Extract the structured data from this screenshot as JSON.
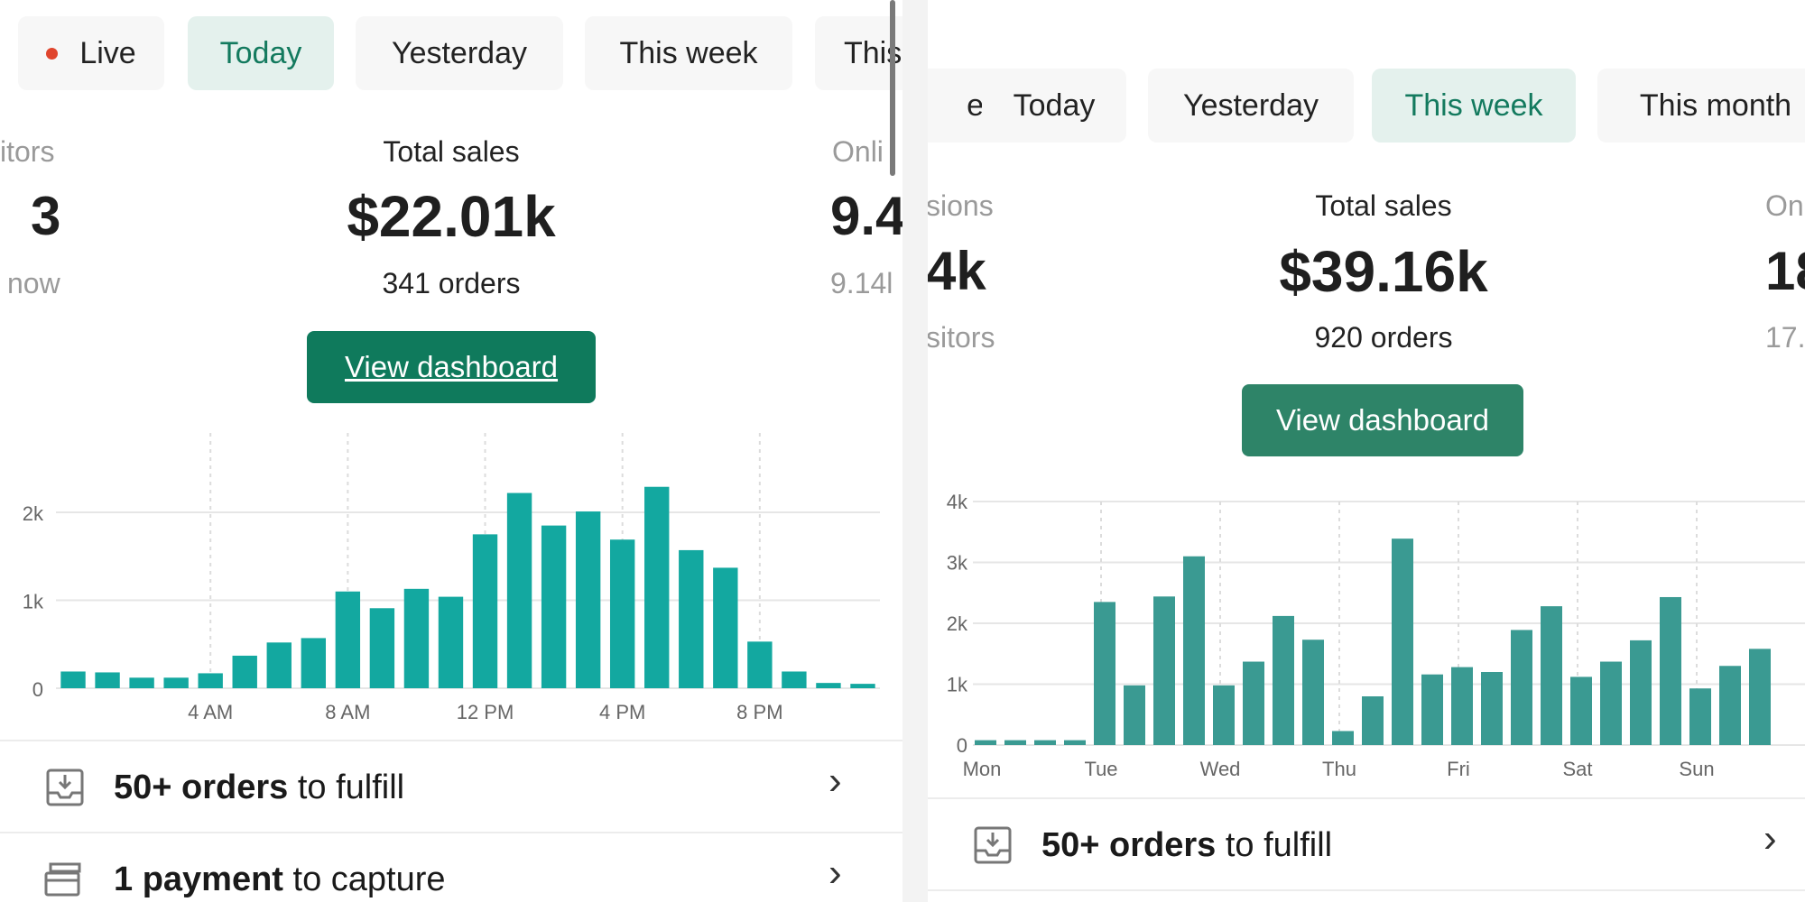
{
  "left": {
    "tabs": {
      "live": "Live",
      "today": "Today",
      "yesterday": "Yesterday",
      "this_week": "This week",
      "this_month": "This"
    },
    "left_stat": {
      "label": "itors",
      "value": "3",
      "sub": "now"
    },
    "center_stat": {
      "label": "Total sales",
      "value": "$22.01k",
      "sub": "341 orders"
    },
    "right_stat": {
      "label": "Onli",
      "value": "9.4",
      "sub": "9.14l"
    },
    "button": "View dashboard",
    "tasks": [
      {
        "bold": "50+ orders",
        "rest": " to fulfill",
        "icon": "inbox-download-icon"
      },
      {
        "bold": "1 payment",
        "rest": " to capture",
        "icon": "card-stack-icon"
      }
    ]
  },
  "right": {
    "tabs": {
      "live": "e",
      "today": "Today",
      "yesterday": "Yesterday",
      "this_week": "This week",
      "this_month": "This month"
    },
    "left_stat": {
      "label": "sions",
      "value": "4k",
      "sub": "sitors"
    },
    "center_stat": {
      "label": "Total sales",
      "value": "$39.16k",
      "sub": "920 orders"
    },
    "right_stat": {
      "label": "On",
      "value": "18",
      "sub": "17."
    },
    "button": "View dashboard",
    "tasks": [
      {
        "bold": "50+ orders",
        "rest": " to fulfill",
        "icon": "inbox-download-icon"
      }
    ]
  },
  "colors": {
    "accent": "#0f7a5c",
    "selected_tab_bg": "#e4f1ed",
    "bar_left": "#13a8a0",
    "bar_right": "#3a9a92",
    "live_dot": "#e0452d"
  },
  "chart_data": [
    {
      "type": "bar",
      "title": "",
      "xlabel": "",
      "ylabel": "",
      "x_tick_labels": [
        "4 AM",
        "8 AM",
        "12 PM",
        "4 PM",
        "8 PM"
      ],
      "y_tick_labels": [
        "0",
        "1k",
        "2k"
      ],
      "ylim": [
        0,
        2800
      ],
      "categories": [
        "0",
        "1",
        "2",
        "3",
        "4",
        "5",
        "6",
        "7",
        "8",
        "9",
        "10",
        "11",
        "12",
        "13",
        "14",
        "15",
        "16",
        "17",
        "18",
        "19",
        "20",
        "21",
        "22",
        "23"
      ],
      "values": [
        190,
        180,
        120,
        120,
        170,
        370,
        520,
        570,
        1100,
        910,
        1130,
        1040,
        1750,
        2220,
        1850,
        2010,
        1690,
        2290,
        1570,
        1370,
        530,
        190,
        60,
        50
      ],
      "grid": true
    },
    {
      "type": "bar",
      "title": "",
      "xlabel": "",
      "ylabel": "",
      "x_tick_labels": [
        "Mon",
        "Tue",
        "Wed",
        "Thu",
        "Fri",
        "Sat",
        "Sun"
      ],
      "y_tick_labels": [
        "0",
        "1k",
        "2k",
        "3k",
        "4k"
      ],
      "ylim": [
        0,
        4000
      ],
      "values": [
        80,
        80,
        80,
        80,
        2350,
        980,
        2440,
        3100,
        980,
        1370,
        2120,
        1730,
        230,
        800,
        3390,
        1160,
        1280,
        1200,
        1890,
        2280,
        1120,
        1370,
        1720,
        2430,
        930,
        1300,
        1580
      ],
      "grid": true
    }
  ]
}
